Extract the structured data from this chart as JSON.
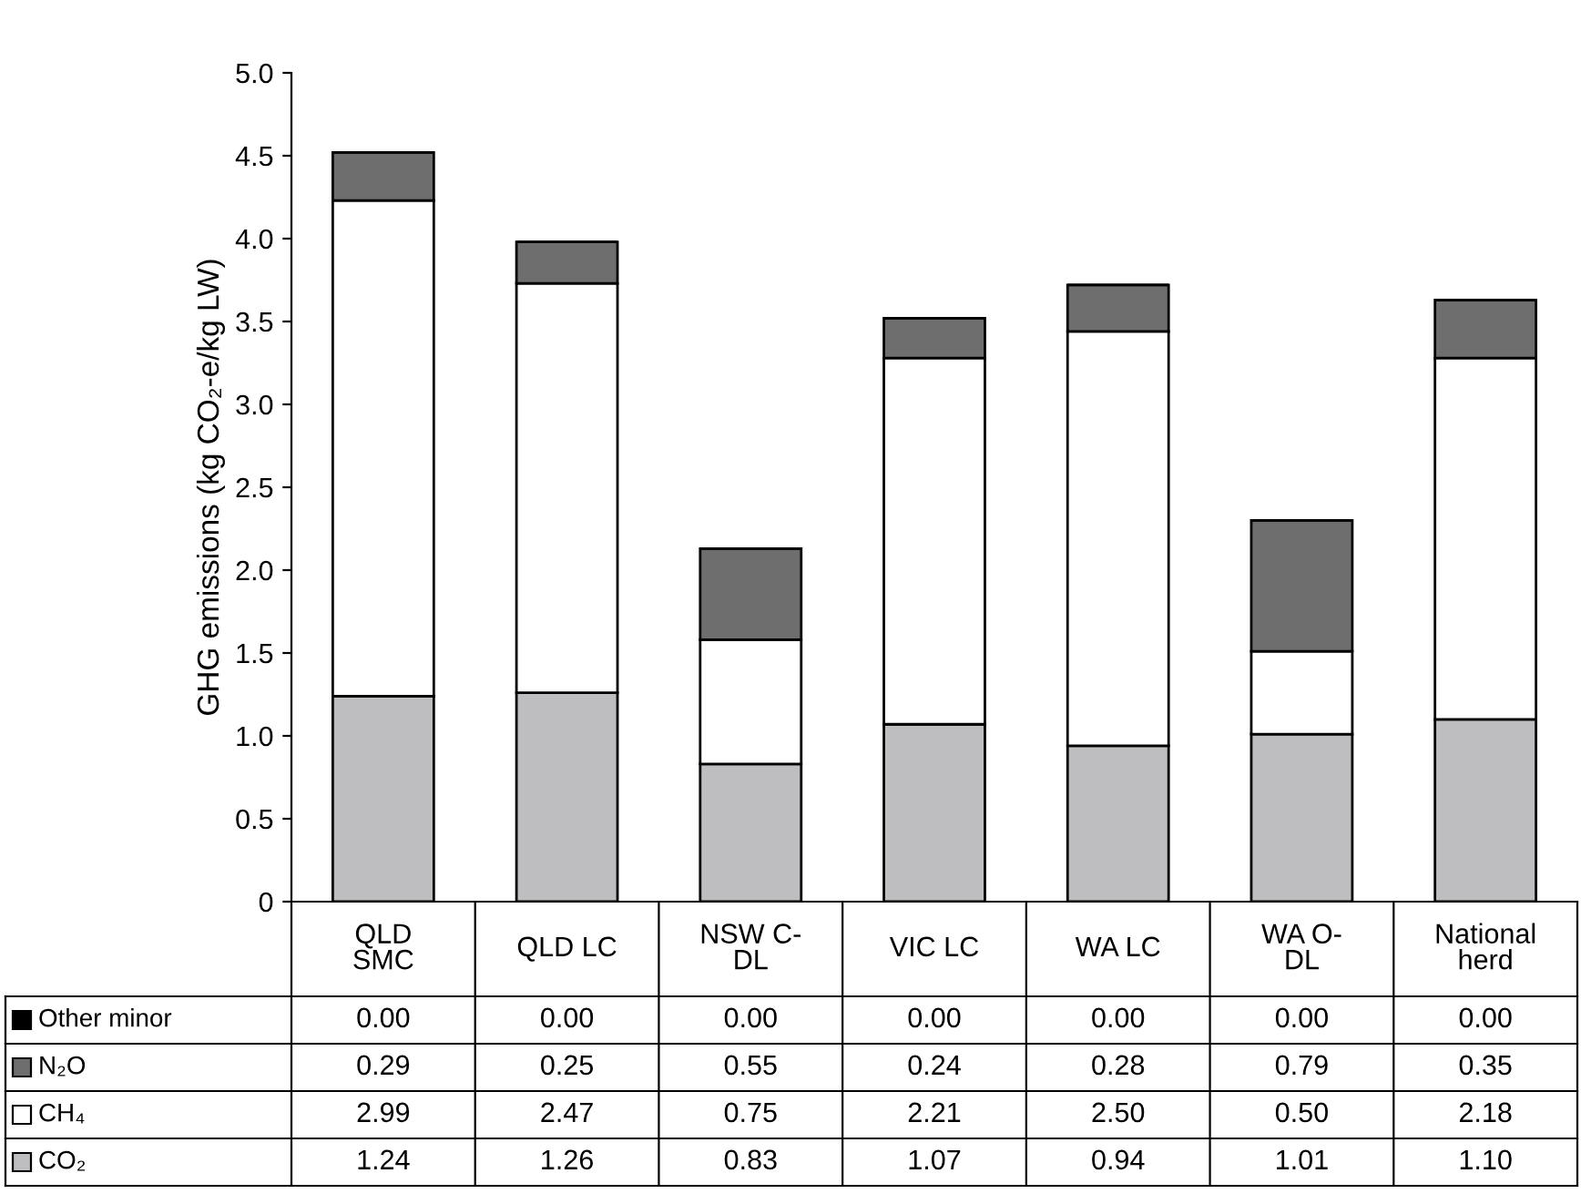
{
  "chart_data": {
    "type": "bar",
    "stacked": true,
    "ylabel": "GHG emissions (kg CO₂-e/kg LW)",
    "categories": [
      "QLD\nSMC",
      "QLD LC",
      "NSW C-\nDL",
      "VIC LC",
      "WA LC",
      "WA O-\nDL",
      "National\nherd"
    ],
    "series": [
      {
        "name": "CO₂",
        "color": "#bebec0",
        "values": [
          1.24,
          1.26,
          0.83,
          1.07,
          0.94,
          1.01,
          1.1
        ],
        "value_labels": [
          "1.24",
          "1.26",
          "0.83",
          "1.07",
          "0.94",
          "1.01",
          "1.10"
        ]
      },
      {
        "name": "CH₄",
        "color": "#ffffff",
        "values": [
          2.99,
          2.47,
          0.75,
          2.21,
          2.5,
          0.5,
          2.18
        ],
        "value_labels": [
          "2.99",
          "2.47",
          "0.75",
          "2.21",
          "2.50",
          "0.50",
          "2.18"
        ]
      },
      {
        "name": "N₂O",
        "color": "#6e6e6e",
        "values": [
          0.29,
          0.25,
          0.55,
          0.24,
          0.28,
          0.79,
          0.35
        ],
        "value_labels": [
          "0.29",
          "0.25",
          "0.55",
          "0.24",
          "0.28",
          "0.79",
          "0.35"
        ]
      },
      {
        "name": "Other minor",
        "color": "#000000",
        "values": [
          0.0,
          0.0,
          0.0,
          0.0,
          0.0,
          0.0,
          0.0
        ],
        "value_labels": [
          "0.00",
          "0.00",
          "0.00",
          "0.00",
          "0.00",
          "0.00",
          "0.00"
        ]
      }
    ],
    "ylim": [
      0,
      5
    ],
    "yticks": [
      0,
      {
        "value": 0.5,
        "label": "0.5"
      },
      {
        "value": 1,
        "label": "1.0"
      },
      {
        "value": 1.5,
        "label": "1.5"
      },
      {
        "value": 2,
        "label": "2.0"
      },
      {
        "value": 2.5,
        "label": "2.5"
      },
      {
        "value": 3,
        "label": "3.0"
      },
      {
        "value": 3.5,
        "label": "3.5"
      },
      {
        "value": 4,
        "label": "4.0"
      },
      {
        "value": 4.5,
        "label": "4.5"
      },
      {
        "value": 5,
        "label": "5.0"
      }
    ],
    "legend": "bottom left",
    "grid": false
  }
}
